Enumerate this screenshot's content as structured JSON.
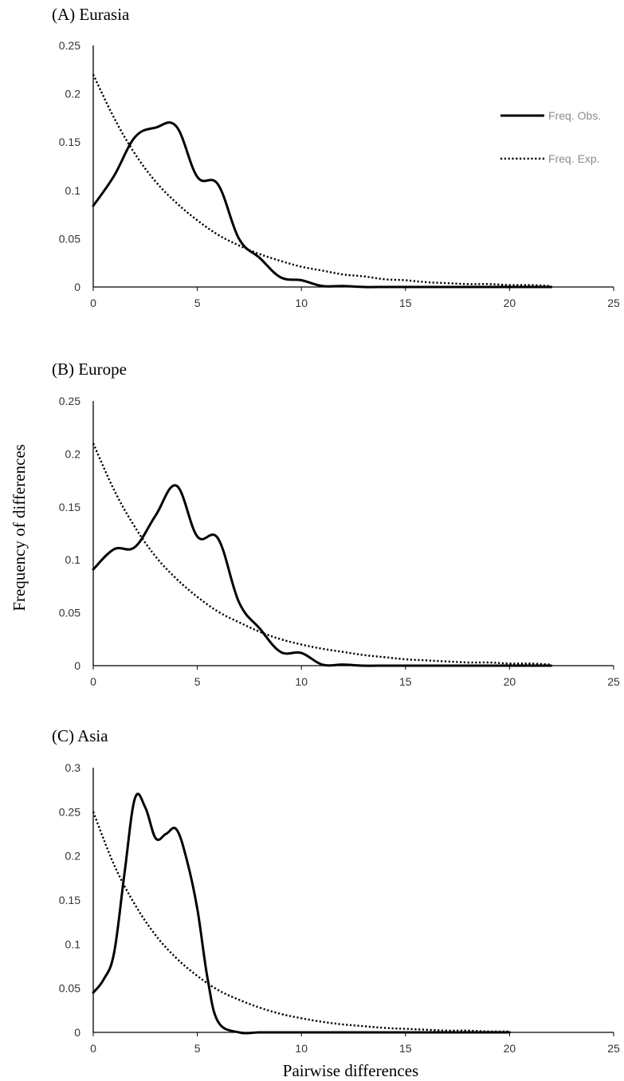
{
  "figure": {
    "ylabel": "Frequency of differences",
    "xlabel": "Pairwise differences"
  },
  "legend": {
    "observed_label": "Freq. Obs.",
    "expected_label": "Freq. Exp."
  },
  "colors": {
    "line": "#000000",
    "axis": "#000000",
    "tick_text": "#333333",
    "legend_text": "#8c8c8c"
  },
  "chart_data": [
    {
      "type": "line",
      "title": "(A) Eurasia",
      "legend_position": "top-right",
      "grid": false,
      "xlim": [
        0,
        25
      ],
      "ylim": [
        0,
        0.25
      ],
      "xticks": [
        "0",
        "5",
        "10",
        "15",
        "20",
        "25"
      ],
      "yticks": [
        "0",
        "0.05",
        "0.1",
        "0.15",
        "0.2",
        "0.25"
      ],
      "series": [
        {
          "name": "Freq. Obs.",
          "style": "solid",
          "x": [
            0,
            1,
            2,
            3,
            4,
            5,
            6,
            7,
            8,
            9,
            10,
            11,
            12,
            13,
            14,
            15,
            16,
            17,
            18,
            19,
            20,
            21,
            22
          ],
          "y": [
            0.084,
            0.115,
            0.155,
            0.165,
            0.166,
            0.114,
            0.106,
            0.05,
            0.03,
            0.01,
            0.007,
            0.001,
            0.001,
            0,
            0,
            0,
            0,
            0,
            0,
            0,
            0,
            0,
            0
          ]
        },
        {
          "name": "Freq. Exp.",
          "style": "dotted",
          "x": [
            0,
            1,
            2,
            3,
            4,
            5,
            6,
            7,
            8,
            9,
            10,
            11,
            12,
            13,
            14,
            15,
            16,
            17,
            18,
            19,
            20,
            21,
            22
          ],
          "y": [
            0.22,
            0.175,
            0.138,
            0.109,
            0.087,
            0.069,
            0.054,
            0.043,
            0.034,
            0.027,
            0.021,
            0.017,
            0.013,
            0.011,
            0.008,
            0.007,
            0.005,
            0.004,
            0.003,
            0.003,
            0.002,
            0.002,
            0.001
          ]
        }
      ]
    },
    {
      "type": "line",
      "title": "(B) Europe",
      "grid": false,
      "xlim": [
        0,
        25
      ],
      "ylim": [
        0,
        0.25
      ],
      "xticks": [
        "0",
        "5",
        "10",
        "15",
        "20",
        "25"
      ],
      "yticks": [
        "0",
        "0.05",
        "0.1",
        "0.15",
        "0.2",
        "0.25"
      ],
      "series": [
        {
          "name": "Freq. Obs.",
          "style": "solid",
          "x": [
            0,
            1,
            2,
            3,
            4,
            5,
            6,
            7,
            8,
            9,
            10,
            11,
            12,
            13,
            14,
            15,
            16,
            17,
            18,
            19,
            20,
            21,
            22
          ],
          "y": [
            0.091,
            0.11,
            0.112,
            0.142,
            0.17,
            0.122,
            0.12,
            0.06,
            0.035,
            0.013,
            0.012,
            0.001,
            0.001,
            0,
            0,
            0,
            0,
            0,
            0,
            0,
            0,
            0,
            0
          ]
        },
        {
          "name": "Freq. Exp.",
          "style": "dotted",
          "x": [
            0,
            1,
            2,
            3,
            4,
            5,
            6,
            7,
            8,
            9,
            10,
            11,
            12,
            13,
            14,
            15,
            16,
            17,
            18,
            19,
            20,
            21,
            22
          ],
          "y": [
            0.21,
            0.166,
            0.131,
            0.103,
            0.082,
            0.065,
            0.051,
            0.041,
            0.032,
            0.025,
            0.02,
            0.016,
            0.013,
            0.01,
            0.008,
            0.006,
            0.005,
            0.004,
            0.003,
            0.003,
            0.002,
            0.002,
            0.001
          ]
        }
      ]
    },
    {
      "type": "line",
      "title": "(C) Asia",
      "grid": false,
      "xlim": [
        0,
        25
      ],
      "ylim": [
        0,
        0.3
      ],
      "xticks": [
        "0",
        "5",
        "10",
        "15",
        "20",
        "25"
      ],
      "yticks": [
        "0",
        "0.05",
        "0.1",
        "0.15",
        "0.2",
        "0.25",
        "0.3"
      ],
      "series": [
        {
          "name": "Freq. Obs.",
          "style": "solid",
          "x": [
            0,
            0.5,
            1,
            1.5,
            2,
            2.5,
            3,
            3.5,
            4,
            4.5,
            5,
            5.5,
            6,
            7,
            8,
            9,
            10,
            11,
            12,
            13,
            14,
            15,
            16,
            17,
            18,
            19,
            20
          ],
          "y": [
            0.045,
            0.06,
            0.09,
            0.18,
            0.265,
            0.255,
            0.22,
            0.225,
            0.23,
            0.195,
            0.14,
            0.06,
            0.012,
            0,
            0,
            0,
            0,
            0,
            0,
            0,
            0,
            0,
            0,
            0,
            0,
            0,
            0
          ]
        },
        {
          "name": "Freq. Exp.",
          "style": "dotted",
          "x": [
            0,
            1,
            2,
            3,
            4,
            5,
            6,
            7,
            8,
            9,
            10,
            11,
            12,
            13,
            14,
            15,
            16,
            17,
            18,
            19,
            20
          ],
          "y": [
            0.25,
            0.19,
            0.145,
            0.11,
            0.084,
            0.064,
            0.048,
            0.037,
            0.028,
            0.021,
            0.016,
            0.012,
            0.009,
            0.007,
            0.005,
            0.004,
            0.003,
            0.002,
            0.002,
            0.001,
            0.001
          ]
        }
      ]
    }
  ]
}
